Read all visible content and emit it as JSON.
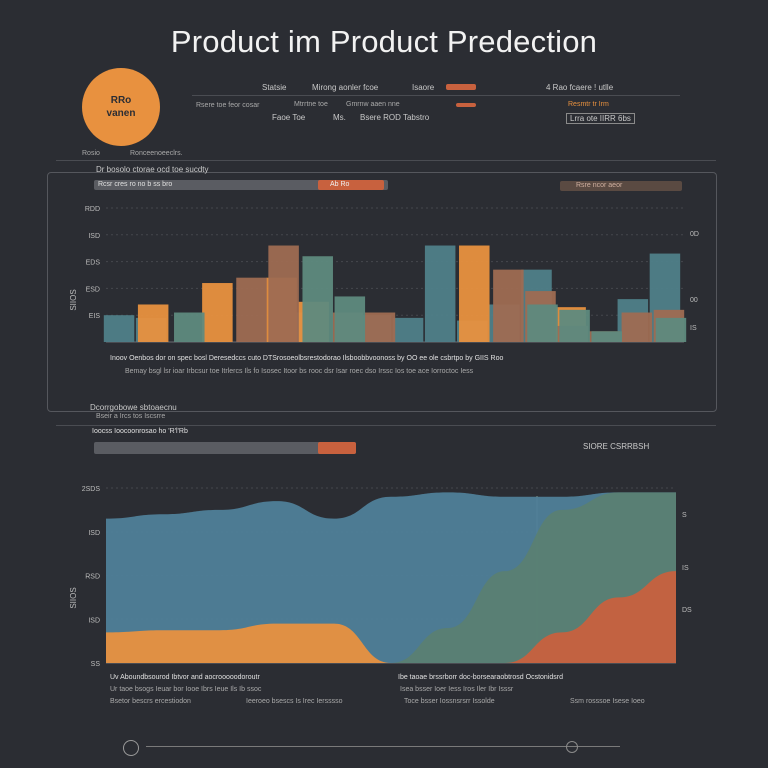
{
  "title": "Product im Product Predection",
  "badge": {
    "line1": "RRo",
    "line2": "vanen"
  },
  "header": {
    "row1": [
      "Statsie",
      "Mirong aonler fcoe",
      "Isaore",
      "4 Rao fcaere ! utlle"
    ],
    "row2": [
      "Rsere toe feor cosar",
      "Mtrrtne toe",
      "Gmrnw aaen nne",
      "Resmtr tr Irm"
    ],
    "row3": [
      "Faoe Toe",
      "Ms.",
      "Bsere ROD Tabstro",
      "Lrra ote IIRR 6bs"
    ],
    "section": [
      "Rosio",
      "Ronceenoeeclrs."
    ]
  },
  "panel1": {
    "header_text": "Dr bosolo ctorae ocd toe sucdty",
    "toolbar_left": "Rcsr cres ro no b ss bro",
    "toolbar_tag": "Ab Ro",
    "toolbar_right": "Rsre ncor aeor",
    "caption": "Inoov Oenbos dor on spec bosl Deresedccs cuto DTSrosoeolbsrestodorao Ilsboobbvoonoss by OO ee ole csbrtpo by GIIS Roo",
    "caption2": "Bemay bsgl lsr ioar Irbcsur toe Itrlercs Ils fo Isosec Itoor bs rooc dsr Isar roec dso Irssc Ios toe ace Iorroctoc Iess"
  },
  "panel2": {
    "header": "Dcorrgobowe sbtoaecnu",
    "subheader": "Bseir a Ircs tos Iscsrre",
    "toolbar_left": "Ioocss Ioocoonrosao ho 'R'l'Rb",
    "toolbar_right": "SIORE CSRRBSH",
    "caption_left": "Uv Aboundbsourod Ibtvor and aocrooooodoroutr",
    "caption_right": "Ibe taoae brssrborr doc-borsearaobtrosd Ocstonidsrd",
    "caption2_left": "Ur taoe bsogs Ieuar bor Iooe Ibrs Ieue Ils Ib ssoc",
    "caption2_right": "Isea bsser Ioer Iess Iros Iler Ibr Isssr",
    "caption3_left": "Bsetor bescrs ercestiodon",
    "caption3_mid": "Ieeroeo bsescs Is Irec Iersssso",
    "caption3_right": "Toce bsser Iossnsrsrr Issolde",
    "caption3_far": "Ssm rosssoe Isese Ioeo"
  },
  "chart_data": [
    {
      "type": "bar",
      "title": "",
      "ylabel": "SIIOS",
      "yticks": [
        "RDD",
        "ISD",
        "EDS",
        "ESD",
        "EIS"
      ],
      "ylim": [
        0,
        5
      ],
      "right_ticks": [
        "0D",
        "00",
        "IS"
      ],
      "series": [
        {
          "color": "#4f7f89",
          "values": [
            1.0,
            0.9,
            0,
            0,
            0,
            0,
            1.1,
            0,
            1.0,
            0.9,
            3.6,
            0.8,
            1.4,
            2.7,
            0.4,
            0,
            1.6,
            3.3
          ]
        },
        {
          "color": "#e8913f",
          "values": [
            0,
            1.4,
            0,
            2.2,
            0,
            2.4,
            1.5,
            0,
            0,
            0,
            0,
            3.6,
            0,
            0,
            1.3,
            0,
            0,
            0
          ]
        },
        {
          "color": "#9e6b52",
          "values": [
            0,
            0,
            0,
            0,
            2.4,
            3.6,
            0,
            1.1,
            1.1,
            0,
            0,
            0,
            2.7,
            1.9,
            0.6,
            0.4,
            1.1,
            1.2
          ]
        },
        {
          "color": "#5e8a7e",
          "values": [
            0,
            0,
            1.1,
            0,
            0,
            0,
            3.2,
            1.7,
            0,
            0,
            0,
            0,
            0,
            1.4,
            1.2,
            0.4,
            0,
            0.9
          ]
        }
      ],
      "colors": {
        "teal": "#4f7f89",
        "orange": "#e8913f",
        "brown": "#9e6b52",
        "green": "#5e8a7e",
        "rust": "#c8613e"
      }
    },
    {
      "type": "area",
      "title": "",
      "ylabel": "SIIOS",
      "yticks": [
        "SS",
        "ISD",
        "RSD",
        "ISD",
        "2SDS"
      ],
      "ylim": [
        0,
        4
      ],
      "right_ticks": [
        "S",
        "IS",
        "DS"
      ],
      "x": [
        0,
        1,
        2,
        3,
        4,
        5,
        6,
        7,
        8,
        9,
        10
      ],
      "series": [
        {
          "name": "",
          "color": "#4f7f99",
          "values": [
            3.3,
            3.4,
            3.5,
            3.7,
            3.3,
            3.8,
            3.9,
            3.8,
            3.8,
            3.9,
            3.9
          ]
        },
        {
          "name": "",
          "color": "#e8913f",
          "values": [
            0.7,
            0.75,
            0.75,
            0.9,
            0.9,
            0.0,
            0.0,
            0.0,
            0.0,
            0.0,
            0.0
          ]
        },
        {
          "name": "",
          "color": "#5a7f72",
          "values": [
            0.0,
            0.0,
            0.0,
            0.0,
            0.0,
            0.0,
            0.8,
            2.1,
            3.5,
            3.9,
            3.9
          ]
        },
        {
          "name": "",
          "color": "#c8613e",
          "values": [
            0.0,
            0.0,
            0.0,
            0.0,
            0.0,
            0.0,
            0.0,
            0.0,
            0.7,
            1.5,
            2.1
          ]
        }
      ]
    }
  ]
}
